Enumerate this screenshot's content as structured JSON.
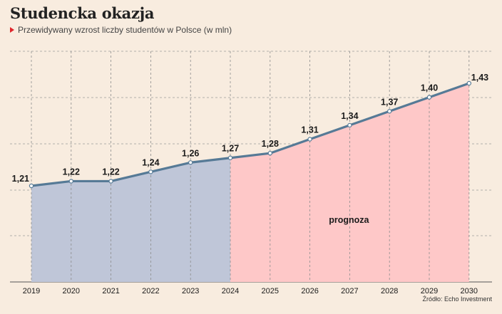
{
  "header": {
    "title": "Studencka okazja",
    "subtitle": "Przewidywany wzrost liczby studentów w Polsce (w mln)"
  },
  "footer": {
    "source": "Źródło: Echo Investment"
  },
  "colors": {
    "historic_fill": "#bfc6d8",
    "forecast_fill": "#fec8c8",
    "line": "#567a96",
    "marker": "#e0262c",
    "background": "#f8ecdf"
  },
  "chart_data": {
    "type": "line",
    "title": "Studencka okazja",
    "subtitle": "Przewidywany wzrost liczby studentów w Polsce (w mln)",
    "categories": [
      "2019",
      "2020",
      "2021",
      "2022",
      "2023",
      "2024",
      "2025",
      "2026",
      "2027",
      "2028",
      "2029",
      "2030"
    ],
    "series": [
      {
        "values": [
          1.21,
          1.22,
          1.22,
          1.24,
          1.26,
          1.27,
          1.28,
          1.31,
          1.34,
          1.37,
          1.4,
          1.43
        ]
      }
    ],
    "value_labels": [
      "1,21",
      "1,22",
      "1,22",
      "1,24",
      "1,26",
      "1,27",
      "1,28",
      "1,31",
      "1,34",
      "1,37",
      "1,40",
      "1,43"
    ],
    "forecast_from": "2024",
    "annotation": "prognoza",
    "ylim": [
      1.0,
      1.45
    ],
    "grid": "horizontal dashed",
    "legend": "none"
  }
}
